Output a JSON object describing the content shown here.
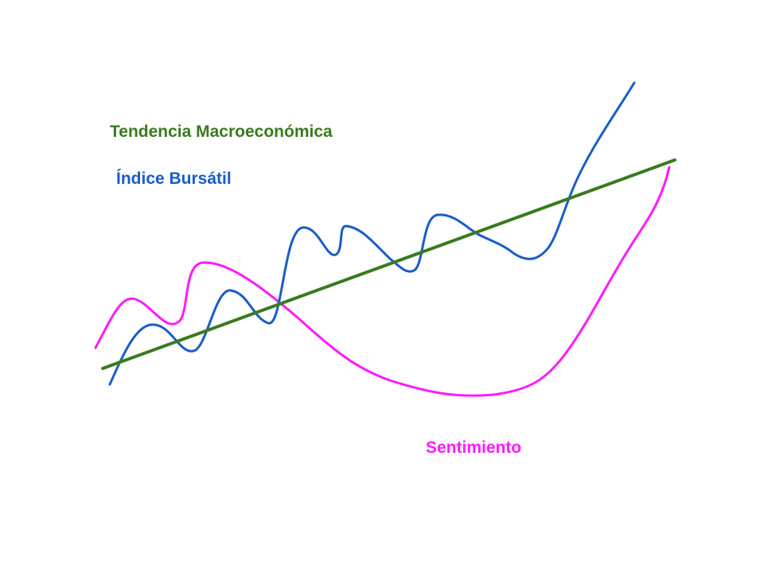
{
  "labels": {
    "macro": "Tendencia Macroeconómica",
    "indice": "Índice Bursátil",
    "sentimiento": "Sentimiento"
  },
  "colors": {
    "macro": "#3a7a1e",
    "indice": "#1a5cc8",
    "sentimiento": "#ff1aff"
  }
}
